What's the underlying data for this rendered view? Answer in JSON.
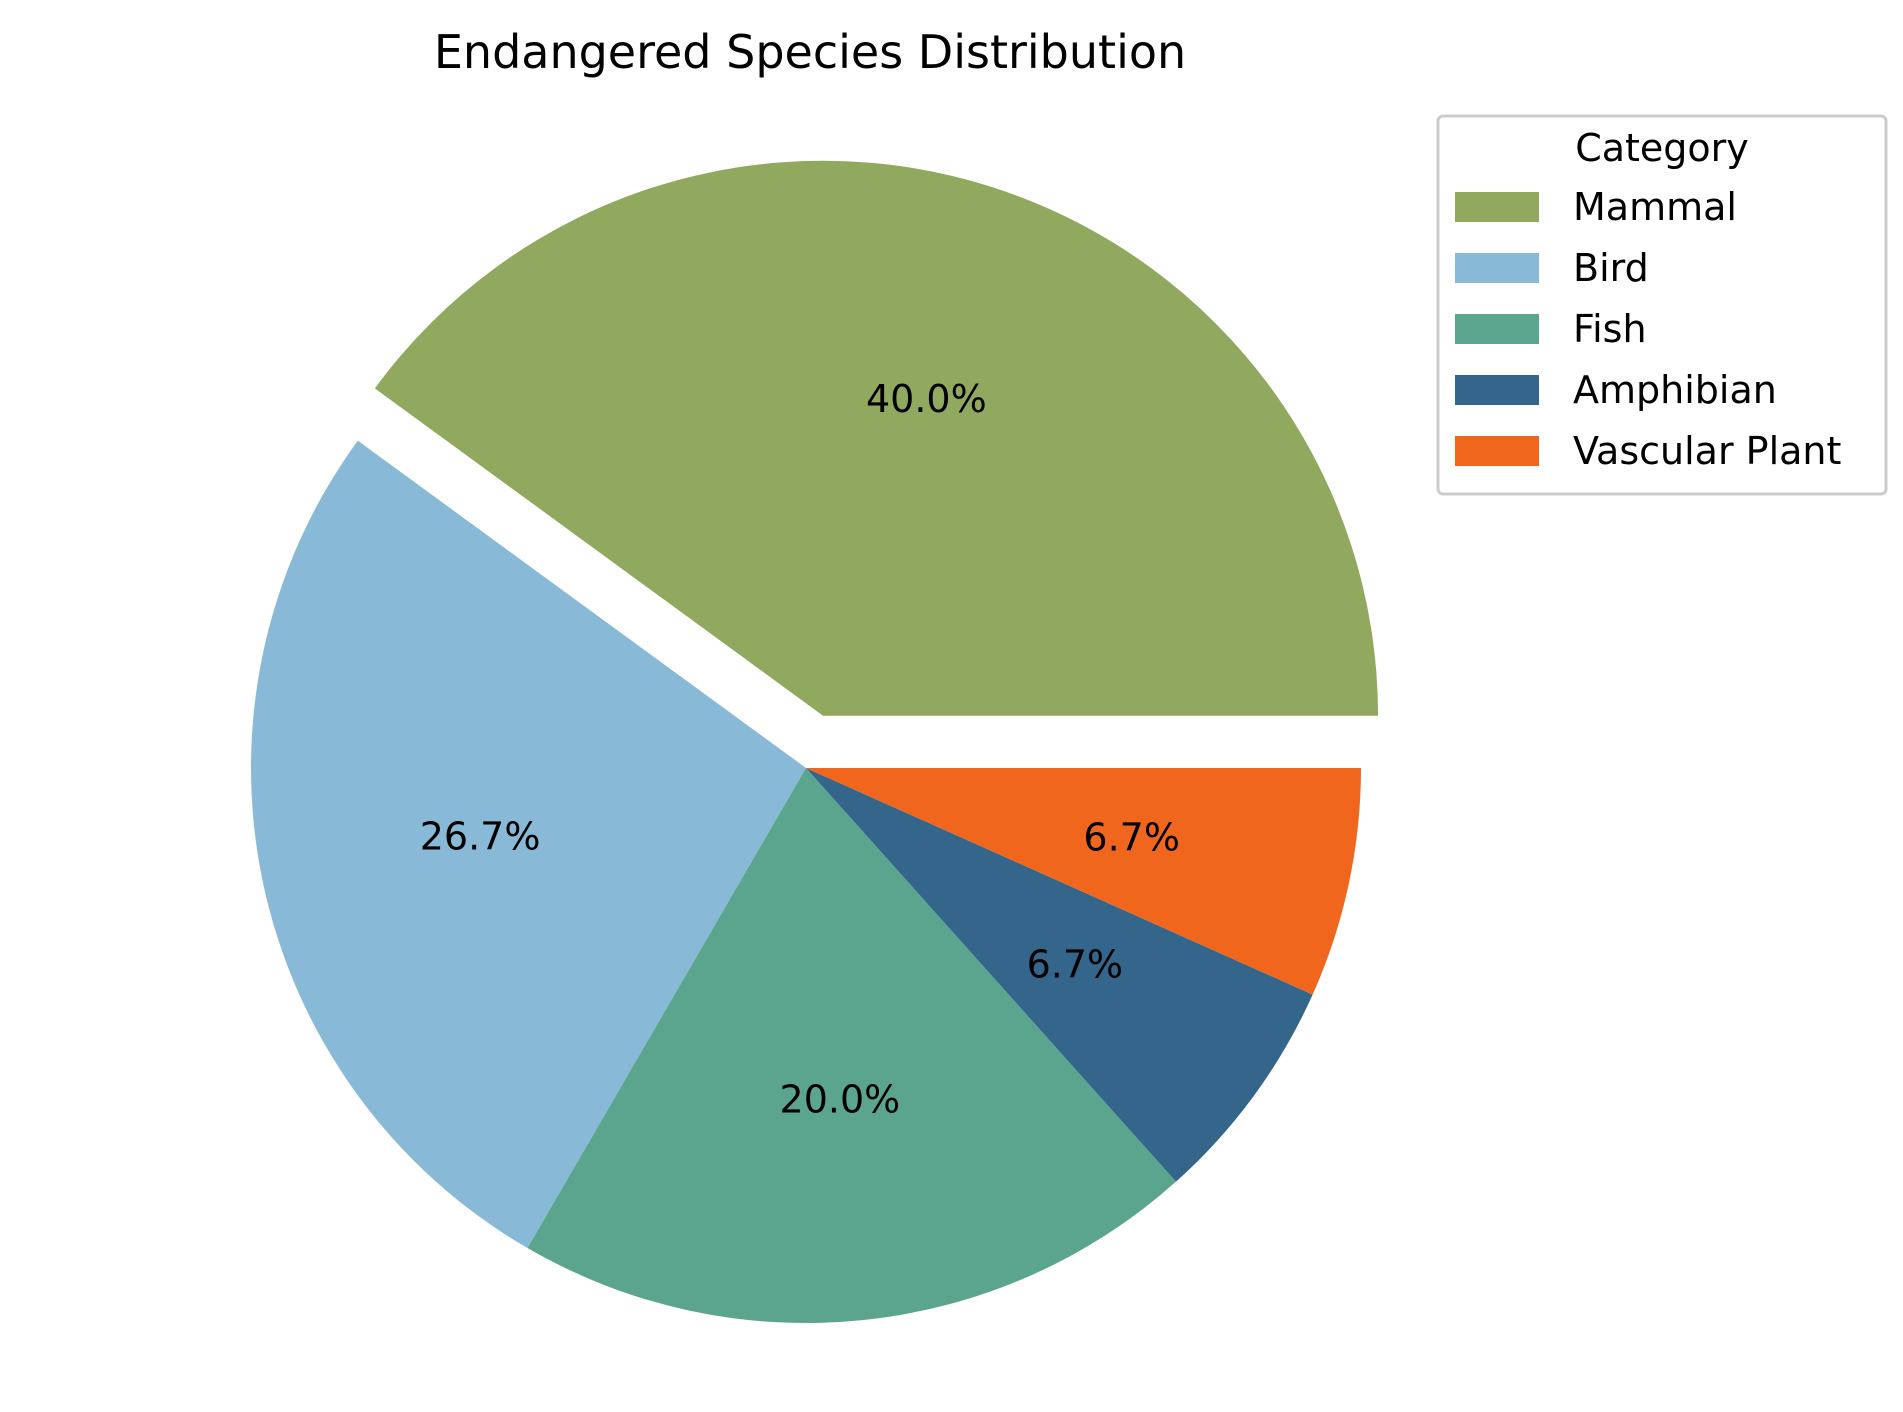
{
  "chart_data": {
    "type": "pie",
    "title": "Endangered Species Distribution",
    "legend_title": "Category",
    "legend_position": "upper-right",
    "start_angle_deg": 0,
    "direction": "counterclockwise",
    "slices": [
      {
        "label": "Mammal",
        "value": 40.0,
        "display": "40.0%",
        "color": "#90a95e",
        "exploded": true
      },
      {
        "label": "Bird",
        "value": 26.7,
        "display": "26.7%",
        "color": "#88b9d7",
        "exploded": false
      },
      {
        "label": "Fish",
        "value": 20.0,
        "display": "20.0%",
        "color": "#5ba58e",
        "exploded": false
      },
      {
        "label": "Amphibian",
        "value": 6.7,
        "display": "6.7%",
        "color": "#34658a",
        "exploded": false
      },
      {
        "label": "Vascular Plant",
        "value": 6.7,
        "display": "6.7%",
        "color": "#f1661d",
        "exploded": false
      }
    ]
  }
}
